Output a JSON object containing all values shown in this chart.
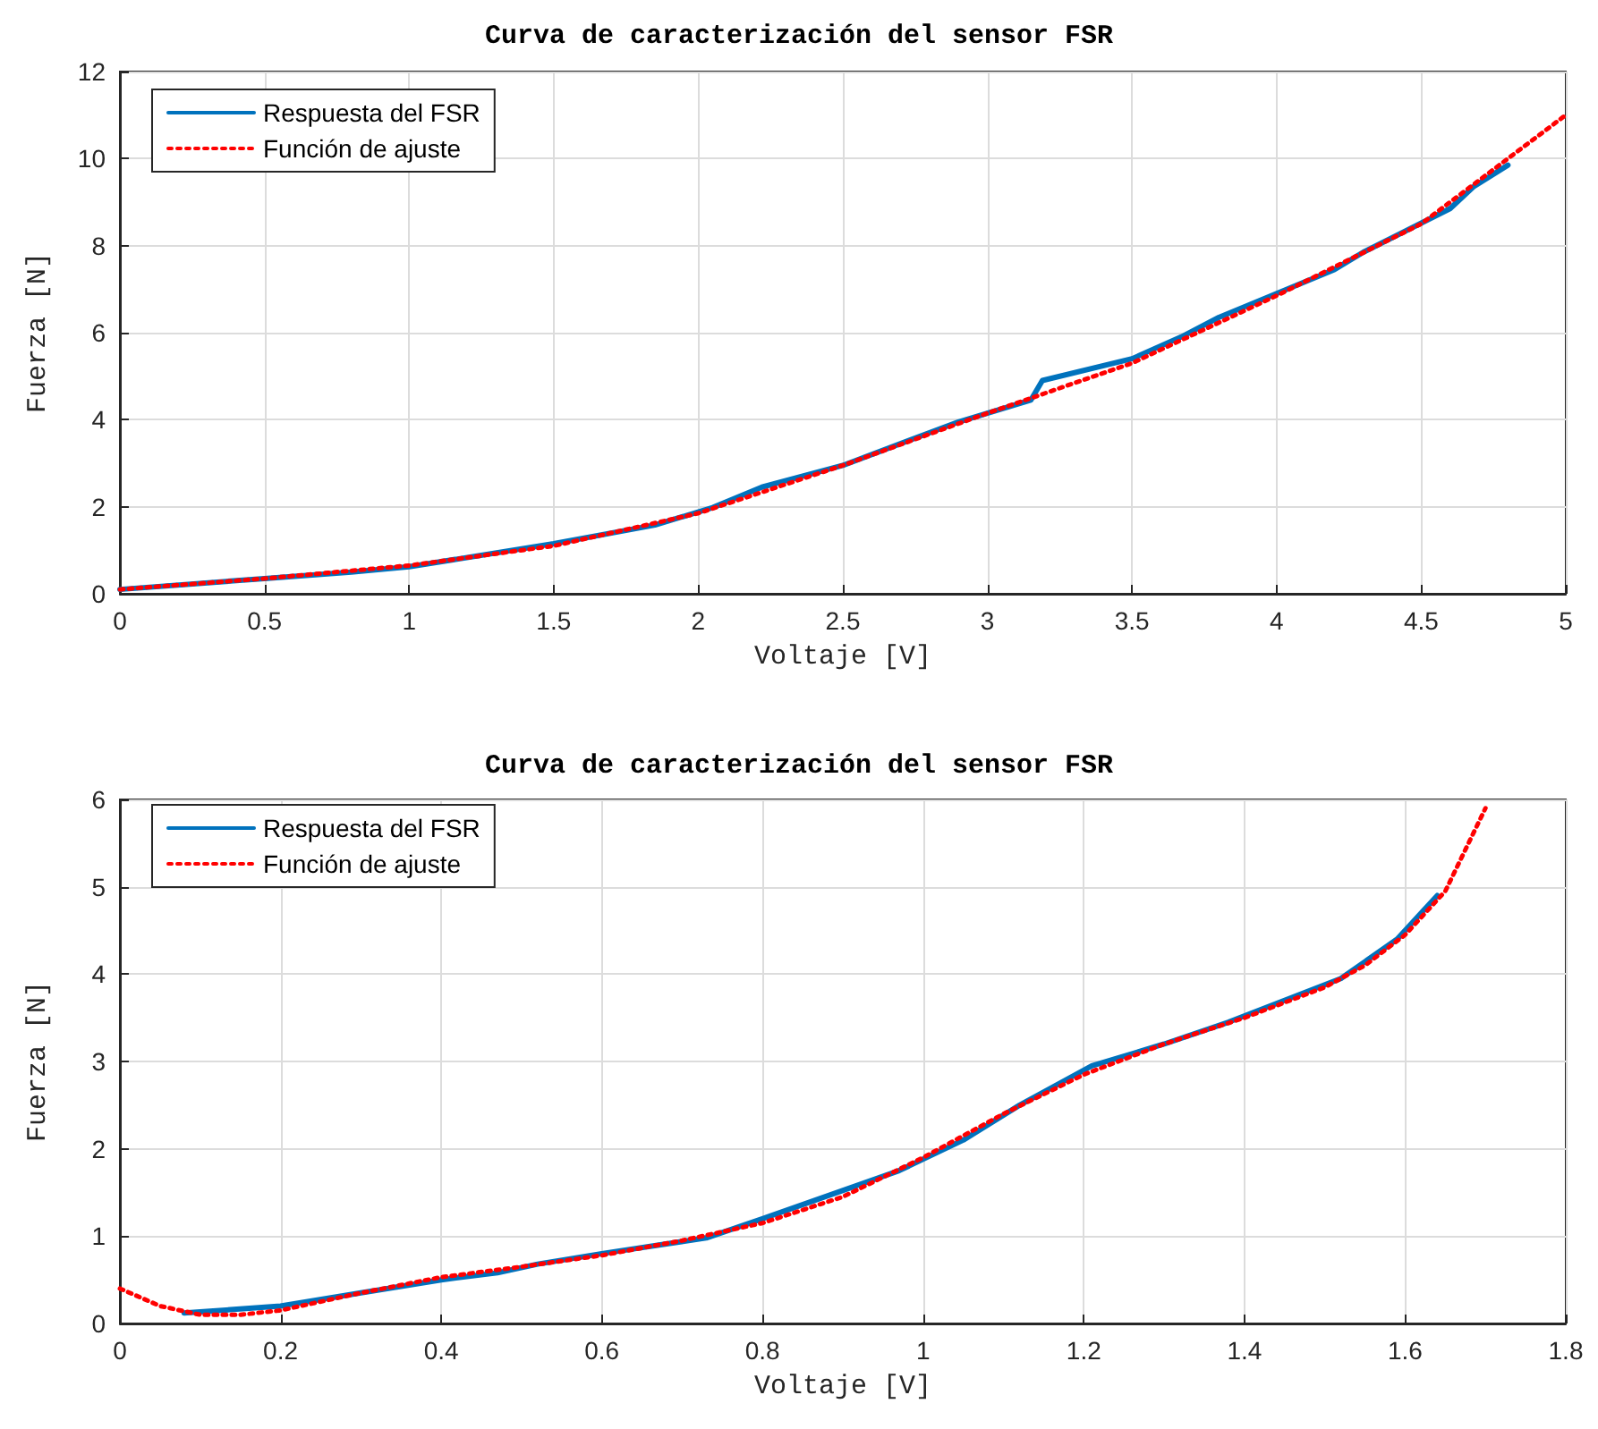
{
  "chart_data": [
    {
      "type": "line",
      "title": "Curva de caracterización del sensor FSR",
      "xlabel": "Voltaje [V]",
      "ylabel": "Fuerza [N]",
      "xlim": [
        0,
        5
      ],
      "xticks": [
        0,
        0.5,
        1,
        1.5,
        2,
        2.5,
        3,
        3.5,
        4,
        4.5,
        5
      ],
      "ylim": [
        0,
        12
      ],
      "yticks": [
        0,
        2,
        4,
        6,
        8,
        10,
        12
      ],
      "grid": true,
      "legend": "top left",
      "marker": "none",
      "series": [
        {
          "name": "Respuesta del FSR",
          "color": "#0072bd",
          "line_style": "solid",
          "x": [
            0,
            0.5,
            0.8,
            1,
            1.5,
            1.85,
            2.05,
            2.22,
            2.5,
            2.9,
            3.15,
            3.19,
            3.5,
            3.67,
            3.8,
            4.2,
            4.3,
            4.6,
            4.68,
            4.8
          ],
          "values": [
            0.1,
            0.35,
            0.5,
            0.62,
            1.15,
            1.58,
            1.98,
            2.45,
            2.95,
            3.95,
            4.45,
            4.9,
            5.4,
            5.9,
            6.35,
            7.45,
            7.85,
            8.85,
            9.35,
            9.85
          ]
        },
        {
          "name": "Función de ajuste",
          "color": "#ff0000",
          "line_style": "dotted",
          "x": [
            0,
            0.5,
            1,
            1.5,
            2,
            2.5,
            3,
            3.5,
            4,
            4.5,
            5
          ],
          "values": [
            0.1,
            0.35,
            0.65,
            1.1,
            1.85,
            2.95,
            4.15,
            5.3,
            6.85,
            8.5,
            11
          ]
        }
      ]
    },
    {
      "type": "line",
      "title": "Curva de caracterización del sensor FSR",
      "xlabel": "Voltaje [V]",
      "ylabel": "Fuerza [N]",
      "xlim": [
        0,
        1.8
      ],
      "xticks": [
        0,
        0.2,
        0.4,
        0.6,
        0.8,
        1,
        1.2,
        1.4,
        1.6,
        1.8
      ],
      "ylim": [
        0,
        6
      ],
      "yticks": [
        0,
        1,
        2,
        3,
        4,
        5,
        6
      ],
      "grid": true,
      "legend": "top left",
      "marker": "none",
      "series": [
        {
          "name": "Respuesta del FSR",
          "color": "#0072bd",
          "line_style": "solid",
          "x": [
            0.08,
            0.2,
            0.3,
            0.4,
            0.47,
            0.52,
            0.6,
            0.73,
            0.8,
            0.97,
            1.05,
            1.12,
            1.21,
            1.3,
            1.38,
            1.52,
            1.59,
            1.64
          ],
          "values": [
            0.12,
            0.2,
            0.35,
            0.5,
            0.58,
            0.68,
            0.8,
            0.98,
            1.2,
            1.75,
            2.1,
            2.5,
            2.95,
            3.2,
            3.45,
            3.95,
            4.4,
            4.9
          ]
        },
        {
          "name": "Función de ajuste",
          "color": "#ff0000",
          "line_style": "dotted",
          "x": [
            0,
            0.05,
            0.1,
            0.15,
            0.2,
            0.3,
            0.4,
            0.5,
            0.6,
            0.7,
            0.8,
            0.9,
            1,
            1.1,
            1.2,
            1.3,
            1.4,
            1.5,
            1.55,
            1.6,
            1.65,
            1.7
          ],
          "values": [
            0.4,
            0.2,
            0.1,
            0.1,
            0.15,
            0.35,
            0.53,
            0.65,
            0.78,
            0.95,
            1.15,
            1.45,
            1.9,
            2.4,
            2.85,
            3.2,
            3.5,
            3.85,
            4.1,
            4.45,
            4.95,
            5.9
          ]
        }
      ]
    }
  ]
}
